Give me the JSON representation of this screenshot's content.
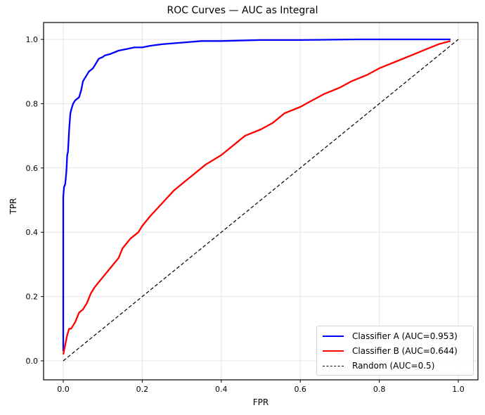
{
  "chart_data": {
    "type": "line",
    "title": "ROC Curves — AUC as Integral",
    "xlabel": "FPR",
    "ylabel": "TPR",
    "xlim": [
      -0.05,
      1.05
    ],
    "ylim": [
      -0.05,
      1.05
    ],
    "xticks": [
      "0.0",
      "0.2",
      "0.4",
      "0.6",
      "0.8",
      "1.0"
    ],
    "yticks": [
      "0.0",
      "0.2",
      "0.4",
      "0.6",
      "0.8",
      "1.0"
    ],
    "grid": true,
    "legend_position": "lower right",
    "series": [
      {
        "name": "Classifier A (AUC=0.953)",
        "color": "#0000ff",
        "style": "solid",
        "x": [
          0.0,
          0.0,
          0.002,
          0.005,
          0.008,
          0.01,
          0.012,
          0.015,
          0.018,
          0.02,
          0.025,
          0.03,
          0.04,
          0.045,
          0.05,
          0.055,
          0.06,
          0.065,
          0.075,
          0.08,
          0.085,
          0.09,
          0.1,
          0.105,
          0.12,
          0.14,
          0.16,
          0.18,
          0.2,
          0.22,
          0.25,
          0.3,
          0.35,
          0.4,
          0.5,
          0.6,
          0.75,
          0.98
        ],
        "y": [
          0.03,
          0.51,
          0.54,
          0.55,
          0.59,
          0.64,
          0.65,
          0.72,
          0.77,
          0.78,
          0.8,
          0.81,
          0.82,
          0.84,
          0.87,
          0.88,
          0.89,
          0.9,
          0.91,
          0.92,
          0.93,
          0.94,
          0.945,
          0.95,
          0.955,
          0.965,
          0.97,
          0.975,
          0.975,
          0.98,
          0.985,
          0.99,
          0.995,
          0.995,
          0.998,
          0.998,
          1.0,
          1.0
        ]
      },
      {
        "name": "Classifier B (AUC=0.644)",
        "color": "#ff0000",
        "style": "solid",
        "x": [
          0.0,
          0.005,
          0.01,
          0.015,
          0.02,
          0.03,
          0.04,
          0.05,
          0.06,
          0.07,
          0.08,
          0.1,
          0.12,
          0.14,
          0.15,
          0.17,
          0.19,
          0.2,
          0.22,
          0.25,
          0.28,
          0.3,
          0.33,
          0.36,
          0.4,
          0.43,
          0.46,
          0.48,
          0.5,
          0.53,
          0.56,
          0.6,
          0.63,
          0.66,
          0.7,
          0.73,
          0.77,
          0.8,
          0.84,
          0.88,
          0.92,
          0.95,
          0.98
        ],
        "y": [
          0.02,
          0.05,
          0.08,
          0.1,
          0.1,
          0.12,
          0.15,
          0.16,
          0.18,
          0.21,
          0.23,
          0.26,
          0.29,
          0.32,
          0.35,
          0.38,
          0.4,
          0.42,
          0.45,
          0.49,
          0.53,
          0.55,
          0.58,
          0.61,
          0.64,
          0.67,
          0.7,
          0.71,
          0.72,
          0.74,
          0.77,
          0.79,
          0.81,
          0.83,
          0.85,
          0.87,
          0.89,
          0.91,
          0.93,
          0.95,
          0.97,
          0.985,
          0.995
        ]
      },
      {
        "name": "Random (AUC=0.5)",
        "color": "#000000",
        "style": "dashed",
        "x": [
          0.0,
          1.0
        ],
        "y": [
          0.0,
          1.0
        ]
      }
    ]
  }
}
